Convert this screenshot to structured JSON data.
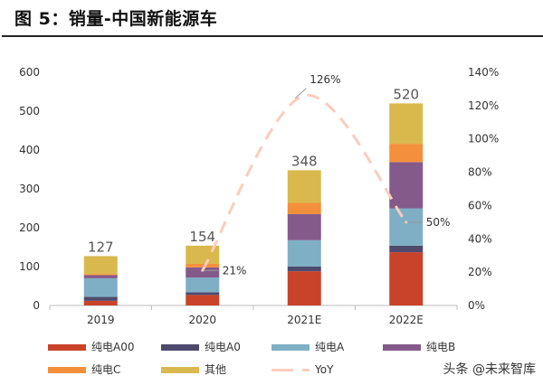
{
  "title": "图 5：销量-中国新能源车",
  "watermark": "头条 @未来智库",
  "chart_data": {
    "type": "bar",
    "stacked": true,
    "title": "",
    "xlabel": "",
    "ylabel": "",
    "categories": [
      "2019",
      "2020",
      "2021E",
      "2022E"
    ],
    "ylim": [
      0,
      600
    ],
    "yticks": [
      "0",
      "100",
      "200",
      "300",
      "400",
      "500",
      "600"
    ],
    "y2lim": [
      0,
      140
    ],
    "y2ticks": [
      "0%",
      "20%",
      "40%",
      "60%",
      "80%",
      "100%",
      "120%",
      "140%"
    ],
    "totals": [
      "127",
      "154",
      "348",
      "520"
    ],
    "series": [
      {
        "name": "纯电A00",
        "color": "#C9432A",
        "values": [
          12,
          27,
          88,
          137
        ]
      },
      {
        "name": "纯电A0",
        "color": "#4E4A6E",
        "values": [
          10,
          7,
          12,
          17
        ]
      },
      {
        "name": "纯电A",
        "color": "#7FAFC4",
        "values": [
          48,
          38,
          68,
          96
        ]
      },
      {
        "name": "纯电B",
        "color": "#845A8B",
        "values": [
          8,
          26,
          67,
          119
        ]
      },
      {
        "name": "纯电C",
        "color": "#F4903C",
        "values": [
          3,
          9,
          29,
          47
        ]
      },
      {
        "name": "其他",
        "color": "#D9B94E",
        "values": [
          46,
          47,
          84,
          104
        ]
      }
    ],
    "line": {
      "name": "YoY",
      "color": "#FACDBE",
      "axis": "right",
      "style": "dashed",
      "values": [
        null,
        21,
        126,
        50
      ],
      "labels": [
        "",
        "21%",
        "126%",
        "50%"
      ]
    },
    "grid": false,
    "legend_placement": "bottom"
  }
}
